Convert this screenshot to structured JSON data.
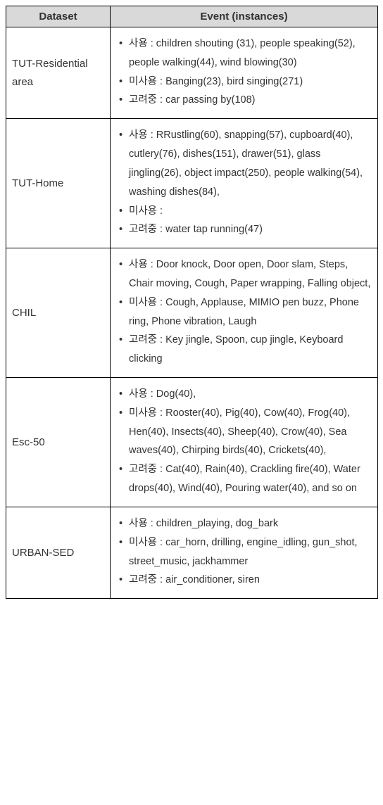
{
  "headers": {
    "dataset": "Dataset",
    "event": "Event (instances)"
  },
  "labels": {
    "use": "사용",
    "unuse": "미사용",
    "consider": "고려중"
  },
  "rows": [
    {
      "dataset": "TUT-Residential area",
      "use": " children shouting (31), people speaking(52), people walking(44), wind blowing(30)",
      "unuse": "Banging(23), bird singing(271)",
      "consider": "car passing by(108)"
    },
    {
      "dataset": "TUT-Home",
      "use": " RRustling(60), snapping(57), cupboard(40), cutlery(76), dishes(151), drawer(51), glass jingling(26), object impact(250), people walking(54), washing dishes(84),",
      "unuse": "",
      "consider": "water tap running(47)"
    },
    {
      "dataset": "CHIL",
      "use": "Door knock, Door open, Door slam, Steps, Chair moving, Cough, Paper wrapping, Falling object,",
      "unuse": "Cough, Applause, MIMIO pen buzz, Phone ring, Phone vibration, Laugh",
      "consider": "Key jingle, Spoon, cup jingle, Keyboard clicking"
    },
    {
      "dataset": "Esc-50",
      "use": "Dog(40),",
      "unuse": " Rooster(40), Pig(40), Cow(40), Frog(40), Hen(40), Insects(40), Sheep(40), Crow(40), Sea waves(40), Chirping birds(40), Crickets(40),",
      "consider": "Cat(40),  Rain(40), Crackling fire(40), Water drops(40), Wind(40), Pouring water(40), and so on"
    },
    {
      "dataset": "URBAN-SED",
      "use": "children_playing, dog_bark",
      "unuse": "car_horn, drilling, engine_idling, gun_shot, street_music, jackhammer",
      "consider": "air_conditioner, siren"
    }
  ]
}
